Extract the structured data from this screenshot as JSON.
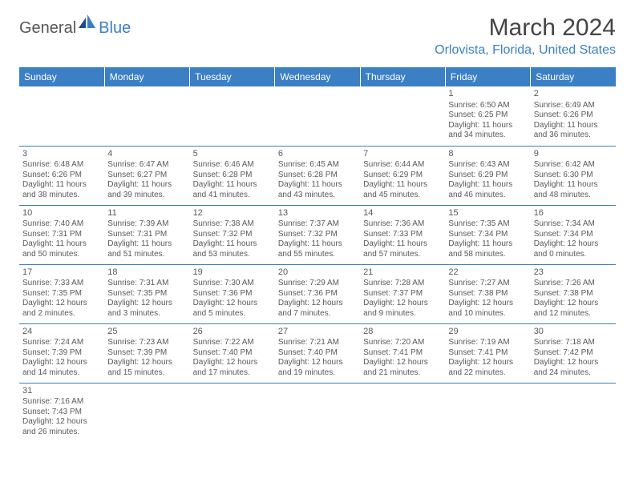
{
  "brand": {
    "general": "General",
    "blue": "Blue"
  },
  "title": "March 2024",
  "location": "Orlovista, Florida, United States",
  "header_color": "#3b7fc4",
  "weekdays": [
    "Sunday",
    "Monday",
    "Tuesday",
    "Wednesday",
    "Thursday",
    "Friday",
    "Saturday"
  ],
  "weeks": [
    [
      null,
      null,
      null,
      null,
      null,
      {
        "n": "1",
        "sr": "Sunrise: 6:50 AM",
        "ss": "Sunset: 6:25 PM",
        "d1": "Daylight: 11 hours",
        "d2": "and 34 minutes."
      },
      {
        "n": "2",
        "sr": "Sunrise: 6:49 AM",
        "ss": "Sunset: 6:26 PM",
        "d1": "Daylight: 11 hours",
        "d2": "and 36 minutes."
      }
    ],
    [
      {
        "n": "3",
        "sr": "Sunrise: 6:48 AM",
        "ss": "Sunset: 6:26 PM",
        "d1": "Daylight: 11 hours",
        "d2": "and 38 minutes."
      },
      {
        "n": "4",
        "sr": "Sunrise: 6:47 AM",
        "ss": "Sunset: 6:27 PM",
        "d1": "Daylight: 11 hours",
        "d2": "and 39 minutes."
      },
      {
        "n": "5",
        "sr": "Sunrise: 6:46 AM",
        "ss": "Sunset: 6:28 PM",
        "d1": "Daylight: 11 hours",
        "d2": "and 41 minutes."
      },
      {
        "n": "6",
        "sr": "Sunrise: 6:45 AM",
        "ss": "Sunset: 6:28 PM",
        "d1": "Daylight: 11 hours",
        "d2": "and 43 minutes."
      },
      {
        "n": "7",
        "sr": "Sunrise: 6:44 AM",
        "ss": "Sunset: 6:29 PM",
        "d1": "Daylight: 11 hours",
        "d2": "and 45 minutes."
      },
      {
        "n": "8",
        "sr": "Sunrise: 6:43 AM",
        "ss": "Sunset: 6:29 PM",
        "d1": "Daylight: 11 hours",
        "d2": "and 46 minutes."
      },
      {
        "n": "9",
        "sr": "Sunrise: 6:42 AM",
        "ss": "Sunset: 6:30 PM",
        "d1": "Daylight: 11 hours",
        "d2": "and 48 minutes."
      }
    ],
    [
      {
        "n": "10",
        "sr": "Sunrise: 7:40 AM",
        "ss": "Sunset: 7:31 PM",
        "d1": "Daylight: 11 hours",
        "d2": "and 50 minutes."
      },
      {
        "n": "11",
        "sr": "Sunrise: 7:39 AM",
        "ss": "Sunset: 7:31 PM",
        "d1": "Daylight: 11 hours",
        "d2": "and 51 minutes."
      },
      {
        "n": "12",
        "sr": "Sunrise: 7:38 AM",
        "ss": "Sunset: 7:32 PM",
        "d1": "Daylight: 11 hours",
        "d2": "and 53 minutes."
      },
      {
        "n": "13",
        "sr": "Sunrise: 7:37 AM",
        "ss": "Sunset: 7:32 PM",
        "d1": "Daylight: 11 hours",
        "d2": "and 55 minutes."
      },
      {
        "n": "14",
        "sr": "Sunrise: 7:36 AM",
        "ss": "Sunset: 7:33 PM",
        "d1": "Daylight: 11 hours",
        "d2": "and 57 minutes."
      },
      {
        "n": "15",
        "sr": "Sunrise: 7:35 AM",
        "ss": "Sunset: 7:34 PM",
        "d1": "Daylight: 11 hours",
        "d2": "and 58 minutes."
      },
      {
        "n": "16",
        "sr": "Sunrise: 7:34 AM",
        "ss": "Sunset: 7:34 PM",
        "d1": "Daylight: 12 hours",
        "d2": "and 0 minutes."
      }
    ],
    [
      {
        "n": "17",
        "sr": "Sunrise: 7:33 AM",
        "ss": "Sunset: 7:35 PM",
        "d1": "Daylight: 12 hours",
        "d2": "and 2 minutes."
      },
      {
        "n": "18",
        "sr": "Sunrise: 7:31 AM",
        "ss": "Sunset: 7:35 PM",
        "d1": "Daylight: 12 hours",
        "d2": "and 3 minutes."
      },
      {
        "n": "19",
        "sr": "Sunrise: 7:30 AM",
        "ss": "Sunset: 7:36 PM",
        "d1": "Daylight: 12 hours",
        "d2": "and 5 minutes."
      },
      {
        "n": "20",
        "sr": "Sunrise: 7:29 AM",
        "ss": "Sunset: 7:36 PM",
        "d1": "Daylight: 12 hours",
        "d2": "and 7 minutes."
      },
      {
        "n": "21",
        "sr": "Sunrise: 7:28 AM",
        "ss": "Sunset: 7:37 PM",
        "d1": "Daylight: 12 hours",
        "d2": "and 9 minutes."
      },
      {
        "n": "22",
        "sr": "Sunrise: 7:27 AM",
        "ss": "Sunset: 7:38 PM",
        "d1": "Daylight: 12 hours",
        "d2": "and 10 minutes."
      },
      {
        "n": "23",
        "sr": "Sunrise: 7:26 AM",
        "ss": "Sunset: 7:38 PM",
        "d1": "Daylight: 12 hours",
        "d2": "and 12 minutes."
      }
    ],
    [
      {
        "n": "24",
        "sr": "Sunrise: 7:24 AM",
        "ss": "Sunset: 7:39 PM",
        "d1": "Daylight: 12 hours",
        "d2": "and 14 minutes."
      },
      {
        "n": "25",
        "sr": "Sunrise: 7:23 AM",
        "ss": "Sunset: 7:39 PM",
        "d1": "Daylight: 12 hours",
        "d2": "and 15 minutes."
      },
      {
        "n": "26",
        "sr": "Sunrise: 7:22 AM",
        "ss": "Sunset: 7:40 PM",
        "d1": "Daylight: 12 hours",
        "d2": "and 17 minutes."
      },
      {
        "n": "27",
        "sr": "Sunrise: 7:21 AM",
        "ss": "Sunset: 7:40 PM",
        "d1": "Daylight: 12 hours",
        "d2": "and 19 minutes."
      },
      {
        "n": "28",
        "sr": "Sunrise: 7:20 AM",
        "ss": "Sunset: 7:41 PM",
        "d1": "Daylight: 12 hours",
        "d2": "and 21 minutes."
      },
      {
        "n": "29",
        "sr": "Sunrise: 7:19 AM",
        "ss": "Sunset: 7:41 PM",
        "d1": "Daylight: 12 hours",
        "d2": "and 22 minutes."
      },
      {
        "n": "30",
        "sr": "Sunrise: 7:18 AM",
        "ss": "Sunset: 7:42 PM",
        "d1": "Daylight: 12 hours",
        "d2": "and 24 minutes."
      }
    ],
    [
      {
        "n": "31",
        "sr": "Sunrise: 7:16 AM",
        "ss": "Sunset: 7:43 PM",
        "d1": "Daylight: 12 hours",
        "d2": "and 26 minutes."
      },
      null,
      null,
      null,
      null,
      null,
      null
    ]
  ]
}
